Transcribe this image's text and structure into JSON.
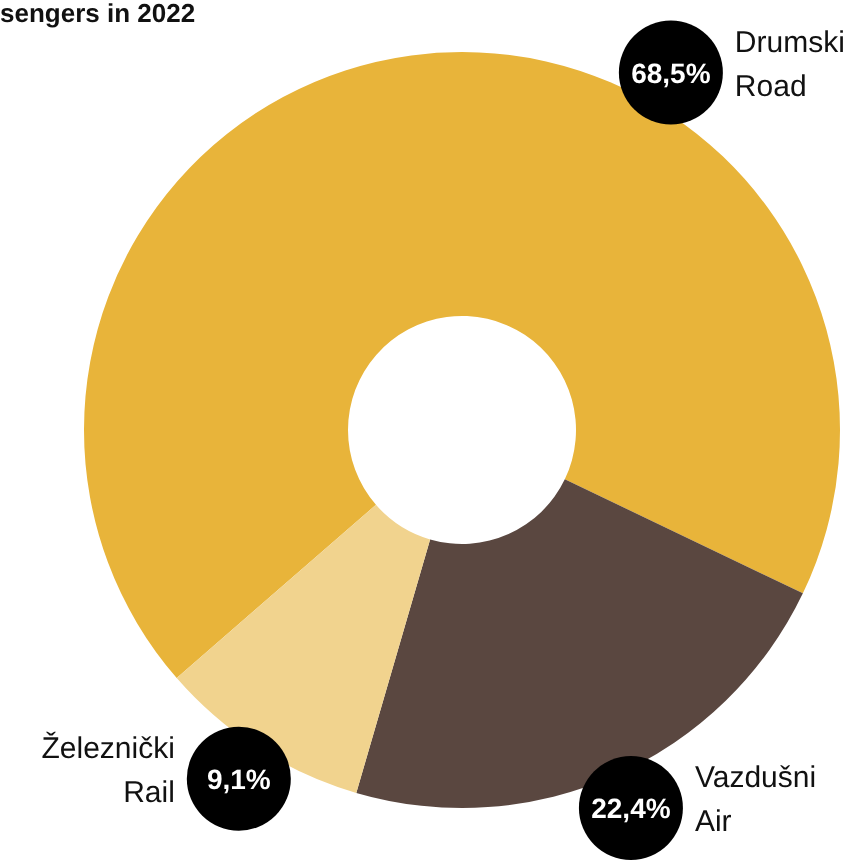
{
  "chart_data": {
    "type": "donut",
    "title": "sengers in 2022",
    "categories": [
      "Drumski Road",
      "Vazdušni Air",
      "Železnički Rail"
    ],
    "values": [
      68.5,
      22.4,
      9.1
    ],
    "value_labels": [
      "68,5%",
      "22,4%",
      "9,1%"
    ],
    "colors": [
      "#e8b43a",
      "#5a4740",
      "#f1d38e"
    ]
  }
}
